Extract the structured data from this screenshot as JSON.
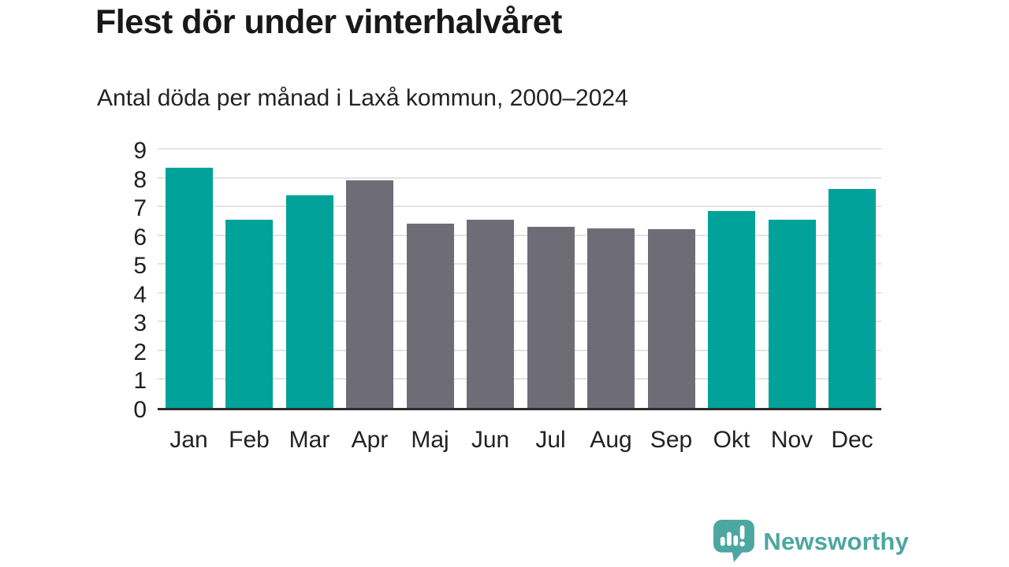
{
  "chart_data": {
    "type": "bar",
    "title": "Flest dör under vinterhalvåret",
    "subtitle": "Antal döda per månad i Laxå kommun, 2000–2024",
    "categories": [
      "Jan",
      "Feb",
      "Mar",
      "Apr",
      "Maj",
      "Jun",
      "Jul",
      "Aug",
      "Sep",
      "Okt",
      "Nov",
      "Dec"
    ],
    "values": [
      8.35,
      6.55,
      7.4,
      7.9,
      6.4,
      6.55,
      6.3,
      6.25,
      6.2,
      6.85,
      6.55,
      7.6
    ],
    "bar_colors": [
      "winter",
      "winter",
      "winter",
      "summer",
      "summer",
      "summer",
      "summer",
      "summer",
      "summer",
      "winter",
      "winter",
      "winter"
    ],
    "colors": {
      "winter": "#00a299",
      "summer": "#6e6d77"
    },
    "xlabel": "",
    "ylabel": "",
    "ylim": [
      0,
      9
    ],
    "yticks": [
      0,
      1,
      2,
      3,
      4,
      5,
      6,
      7,
      8,
      9
    ],
    "grid": true,
    "legend_position": "none",
    "gridline_color": "#e3e3e3",
    "axis_color": "#2d2d2d"
  },
  "footer": {
    "brand": "Newsworthy",
    "brand_color": "#4da6a1",
    "icon": "bar-chart-speech-bubble-icon"
  }
}
